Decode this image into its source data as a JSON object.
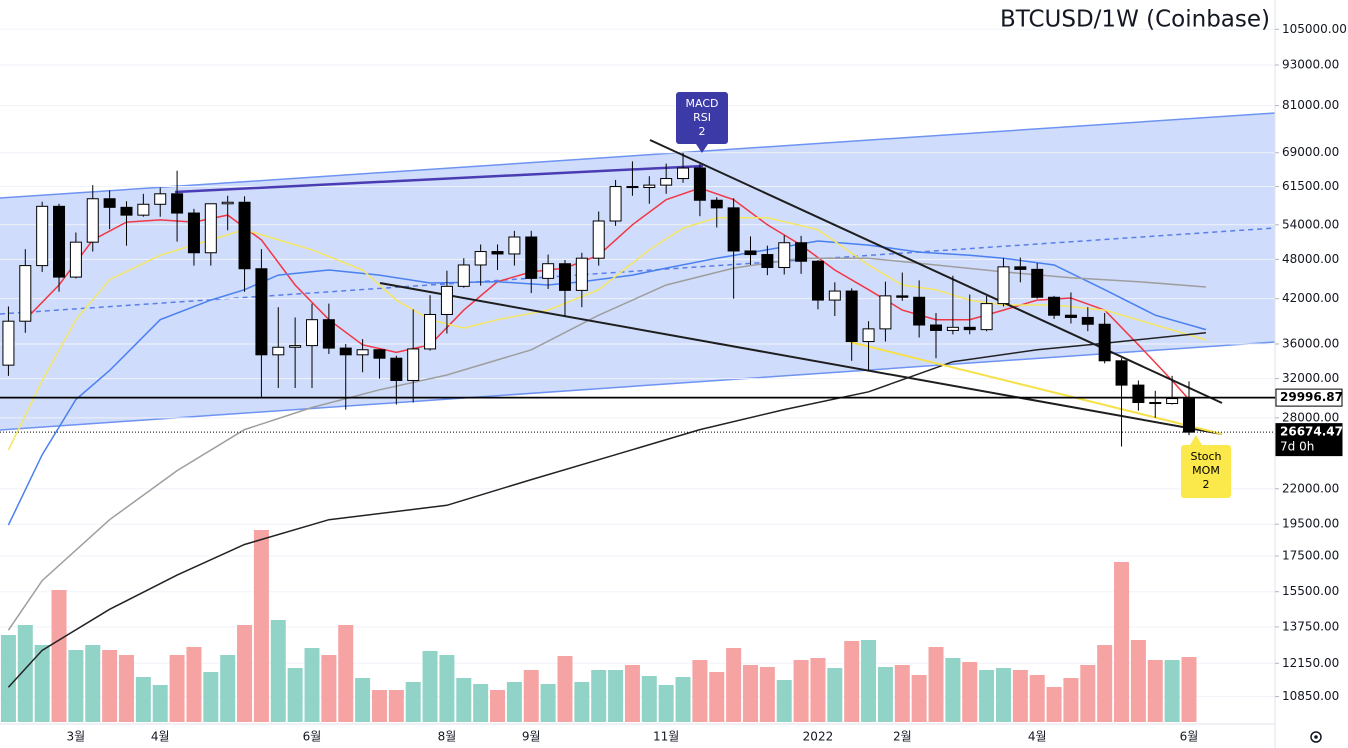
{
  "chart_data": {
    "type": "candlestick",
    "title": "BTCUSD/1W (Coinbase)",
    "log_scale": true,
    "grid": true,
    "xlim": [
      -0.5,
      75.1
    ],
    "ylim": [
      9850,
      116000
    ],
    "yticks": [
      {
        "value": 105000,
        "label": "105000.00"
      },
      {
        "value": 93000,
        "label": "93000.00"
      },
      {
        "value": 81000,
        "label": "81000.00"
      },
      {
        "value": 69000,
        "label": "69000.00"
      },
      {
        "value": 61500,
        "label": "61500.00"
      },
      {
        "value": 54000,
        "label": "54000.00"
      },
      {
        "value": 48000,
        "label": "48000.00"
      },
      {
        "value": 42000,
        "label": "42000.00"
      },
      {
        "value": 36000,
        "label": "36000.00"
      },
      {
        "value": 32000,
        "label": "32000.00"
      },
      {
        "value": 28000,
        "label": "28000.00"
      },
      {
        "value": 22000,
        "label": "22000.00"
      },
      {
        "value": 19500,
        "label": "19500.00"
      },
      {
        "value": 17500,
        "label": "17500.00"
      },
      {
        "value": 15500,
        "label": "15500.00"
      },
      {
        "value": 13750,
        "label": "13750.00"
      },
      {
        "value": 12150,
        "label": "12150.00"
      },
      {
        "value": 10850,
        "label": "10850.00"
      }
    ],
    "categories": [
      null,
      null,
      null,
      null,
      "3월",
      null,
      null,
      null,
      null,
      "4월",
      null,
      null,
      null,
      null,
      null,
      null,
      null,
      null,
      "6월",
      null,
      null,
      null,
      null,
      null,
      null,
      null,
      "8월",
      null,
      null,
      null,
      null,
      "9월",
      null,
      null,
      null,
      null,
      null,
      null,
      null,
      "11월",
      null,
      null,
      null,
      null,
      null,
      null,
      null,
      null,
      "2022",
      null,
      null,
      null,
      null,
      "2월",
      null,
      null,
      null,
      null,
      null,
      null,
      null,
      "4월",
      null,
      null,
      null,
      null,
      null,
      null,
      null,
      null,
      "6월"
    ],
    "up_color": "#ffffff",
    "down_color": "#000000",
    "open": [
      33500,
      38900,
      47000,
      57500,
      45200,
      50900,
      59000,
      57300,
      55800,
      57900,
      60000,
      56200,
      49100,
      58000,
      58300,
      46500,
      34700,
      35600,
      35800,
      39100,
      35500,
      34700,
      35300,
      34300,
      31800,
      35400,
      39800,
      43800,
      47100,
      49300,
      48900,
      51800,
      45000,
      47300,
      43200,
      48200,
      54700,
      61500,
      61300,
      61800,
      63200,
      65500,
      58700,
      57200,
      49400,
      48800,
      46700,
      50800,
      47700,
      41800,
      43100,
      36300,
      37900,
      42400,
      42200,
      38400,
      37700,
      38100,
      37800,
      41300,
      46800,
      46400,
      42200,
      39700,
      39400,
      38500,
      34000,
      31300,
      29500,
      29400,
      29900
    ],
    "high": [
      40900,
      49700,
      58400,
      58000,
      52600,
      61800,
      60700,
      58500,
      60000,
      61300,
      64900,
      57000,
      58000,
      59600,
      59500,
      49700,
      40800,
      39400,
      41300,
      41300,
      36000,
      36600,
      35400,
      34600,
      40500,
      42500,
      46200,
      48200,
      50500,
      50500,
      52900,
      52900,
      48800,
      47900,
      49100,
      56500,
      62900,
      67000,
      63700,
      66500,
      69000,
      66400,
      59300,
      59100,
      51900,
      50300,
      52100,
      52000,
      47900,
      44400,
      43500,
      38900,
      44500,
      45900,
      44700,
      40000,
      45400,
      42600,
      42400,
      48200,
      48300,
      47400,
      42400,
      42900,
      40800,
      40000,
      34300,
      31800,
      30700,
      32300,
      31700
    ],
    "low": [
      32300,
      37400,
      46000,
      43000,
      45000,
      49300,
      53200,
      50300,
      55500,
      55500,
      51000,
      47000,
      47000,
      53000,
      43000,
      30000,
      31000,
      31000,
      31000,
      34800,
      28800,
      32700,
      32000,
      29300,
      29500,
      35200,
      37300,
      43600,
      43900,
      46300,
      47000,
      42800,
      43400,
      39600,
      40800,
      47000,
      53800,
      59600,
      58000,
      60000,
      62300,
      55600,
      53500,
      42000,
      47100,
      45500,
      45600,
      45700,
      40500,
      39600,
      34000,
      32900,
      36300,
      41700,
      36800,
      34300,
      37200,
      37200,
      37600,
      40900,
      44400,
      42000,
      39200,
      38600,
      37600,
      33700,
      25400,
      28700,
      28000,
      29300,
      26400
    ],
    "close": [
      38900,
      47000,
      57500,
      45200,
      50900,
      59000,
      57300,
      55800,
      57900,
      60000,
      56200,
      49100,
      58000,
      58300,
      46500,
      34700,
      35600,
      35800,
      39100,
      35500,
      34700,
      35300,
      34300,
      31800,
      35400,
      39800,
      43800,
      47100,
      49300,
      48900,
      51800,
      45000,
      47300,
      43200,
      48200,
      54700,
      61500,
      61300,
      61800,
      63200,
      65500,
      58700,
      57200,
      49400,
      48800,
      46700,
      50800,
      47700,
      41800,
      43100,
      36300,
      37900,
      42400,
      42200,
      38400,
      37700,
      38100,
      37800,
      41300,
      46800,
      46400,
      42200,
      39700,
      39400,
      38500,
      34000,
      31300,
      29500,
      29400,
      29900,
      26674.47
    ],
    "volume_up_color": "#92d3c8",
    "volume_down_color": "#f5a3a3",
    "volume": [
      87,
      97,
      77,
      132,
      72,
      77,
      72,
      67,
      45,
      37,
      67,
      75,
      50,
      67,
      97,
      192,
      102,
      54,
      74,
      67,
      97,
      44,
      32,
      32,
      40,
      71,
      67,
      44,
      38,
      32,
      40,
      52,
      38,
      66,
      40,
      52,
      52,
      57,
      46,
      37,
      45,
      62,
      50,
      74,
      57,
      55,
      42,
      62,
      64,
      54,
      81,
      82,
      55,
      57,
      47,
      75,
      64,
      60,
      52,
      54,
      52,
      47,
      35,
      44,
      57,
      77,
      160,
      82,
      62,
      62,
      65
    ],
    "overlays": [
      {
        "color": "#f23645",
        "x": [
          1,
          3,
          5,
          7,
          9,
          11,
          13,
          15,
          17,
          19,
          21,
          23,
          25,
          27,
          29,
          31,
          33,
          35,
          37,
          39,
          41,
          43,
          45,
          47,
          49,
          51,
          53,
          55,
          57,
          59,
          61,
          63,
          65,
          67,
          69,
          70
        ],
        "values": [
          39100,
          44000,
          51300,
          54500,
          54900,
          54500,
          55800,
          51300,
          44000,
          39100,
          35900,
          35000,
          35900,
          40400,
          44500,
          46000,
          46600,
          48700,
          54000,
          58800,
          61200,
          58800,
          54000,
          50400,
          46300,
          43300,
          40400,
          39100,
          39100,
          40400,
          41800,
          42100,
          40400,
          35900,
          31800,
          29800
        ]
      },
      {
        "color": "#4a80f0",
        "x": [
          0,
          2,
          4,
          6,
          9,
          12,
          14,
          16,
          19,
          22,
          25,
          29,
          32,
          34,
          37,
          39,
          42,
          45,
          48,
          51,
          54,
          57,
          59,
          62,
          65,
          68,
          71
        ],
        "values": [
          19440,
          24700,
          29800,
          32900,
          39100,
          41800,
          43300,
          45500,
          46300,
          45500,
          44300,
          44500,
          44000,
          44500,
          45500,
          46600,
          48200,
          49600,
          51100,
          50400,
          49200,
          48700,
          48200,
          47100,
          43300,
          39700,
          37800
        ]
      },
      {
        "color": "#f5e663",
        "x": [
          0,
          2,
          4,
          6,
          9,
          12,
          14,
          16,
          18,
          21,
          23,
          25,
          27,
          29,
          32,
          35,
          38,
          40,
          42,
          45,
          48,
          51,
          53,
          55,
          57,
          59,
          62,
          65,
          68,
          71
        ],
        "values": [
          25100,
          31800,
          39100,
          44800,
          48700,
          51300,
          53100,
          51300,
          49600,
          46300,
          41800,
          39100,
          38000,
          39100,
          40400,
          43300,
          49600,
          53400,
          55300,
          55300,
          53100,
          47100,
          44000,
          43300,
          41800,
          41100,
          41100,
          40400,
          38400,
          36500
        ]
      },
      {
        "color": "#9e9e9e",
        "x": [
          0,
          2,
          6,
          10,
          14,
          18,
          22,
          26,
          31,
          35,
          39,
          43,
          47,
          51,
          55,
          59,
          63,
          67,
          71
        ],
        "values": [
          13600,
          16100,
          19800,
          23400,
          26900,
          29000,
          30800,
          32400,
          35300,
          39700,
          44000,
          46600,
          48200,
          48200,
          47100,
          46000,
          45100,
          44500,
          43700
        ]
      },
      {
        "color": "#222222",
        "x": [
          0,
          2,
          6,
          10,
          14,
          19,
          26,
          31,
          36,
          41,
          46,
          51,
          56,
          61,
          65,
          71
        ],
        "values": [
          11200,
          12700,
          14600,
          16400,
          18200,
          19800,
          20800,
          22700,
          24700,
          26900,
          28800,
          30600,
          33900,
          35300,
          36100,
          37400
        ]
      }
    ],
    "price_lines": [
      {
        "value": 29996.87,
        "style": "solid"
      },
      {
        "value": 26674.47,
        "style": "dotted",
        "note": "7d 0h"
      }
    ],
    "annotations": [
      {
        "lines": [
          "MACD",
          "RSI",
          "2"
        ],
        "color": "#3c3aa6"
      },
      {
        "lines": [
          "Stoch",
          "MOM",
          "2"
        ],
        "color": "#fbe84a"
      }
    ]
  }
}
